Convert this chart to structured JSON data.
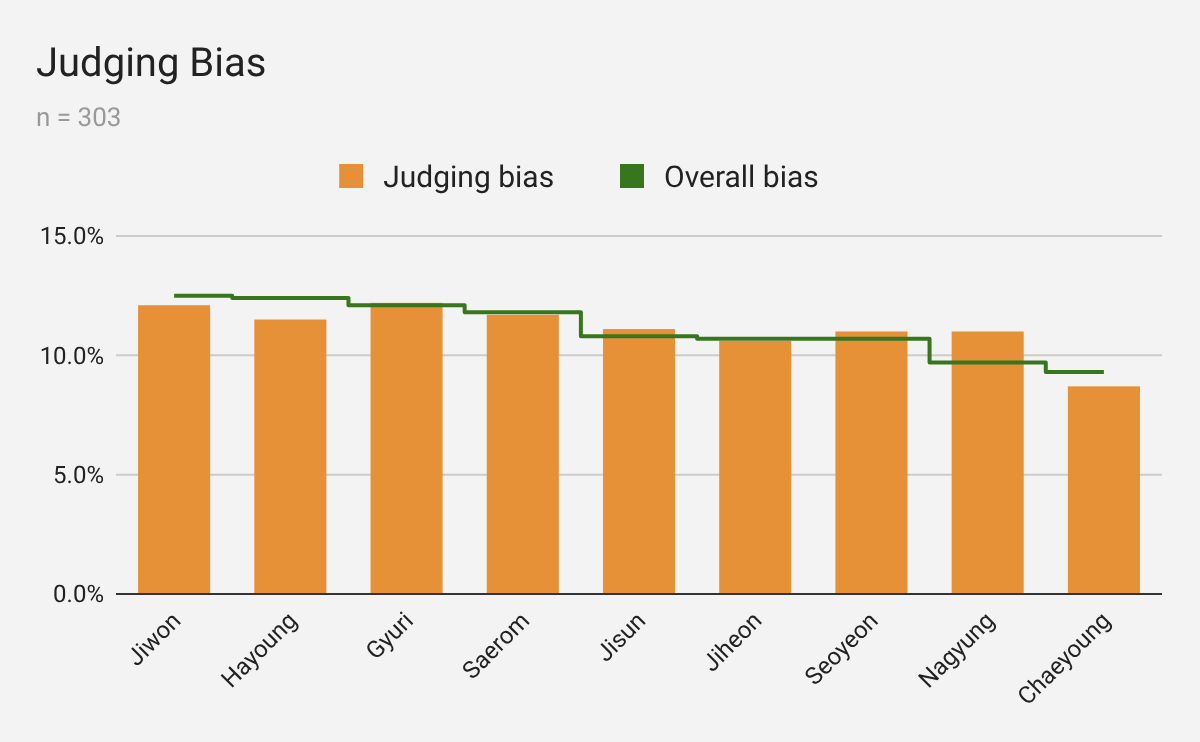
{
  "chart_data": {
    "type": "bar",
    "title": "Judging Bias",
    "subtitle": "n = 303",
    "categories": [
      "Jiwon",
      "Hayoung",
      "Gyuri",
      "Saerom",
      "Jisun",
      "Jiheon",
      "Seoyeon",
      "Nagyung",
      "Chaeyoung"
    ],
    "series": [
      {
        "name": "Judging bias",
        "color": "#e69138",
        "values": [
          12.1,
          11.5,
          12.2,
          11.7,
          11.1,
          10.6,
          11.0,
          11.0,
          8.7
        ]
      },
      {
        "name": "Overall bias",
        "type": "step",
        "color": "#38761d",
        "values": [
          12.5,
          12.4,
          12.1,
          11.8,
          10.8,
          10.7,
          10.7,
          9.7,
          9.3
        ]
      }
    ],
    "ylim": [
      0,
      15
    ],
    "yticks": [
      {
        "value": 0,
        "label": "0.0%"
      },
      {
        "value": 5,
        "label": "5.0%"
      },
      {
        "value": 10,
        "label": "10.0%"
      },
      {
        "value": 15,
        "label": "15.0%"
      }
    ],
    "grid": "y",
    "legend": "top"
  }
}
